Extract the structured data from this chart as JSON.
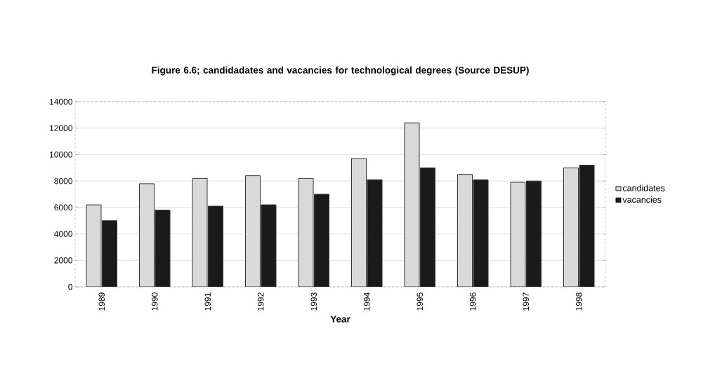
{
  "chart_data": {
    "type": "bar",
    "title": "Figure 6.6; candidadates and vacancies for technological degrees (Source DESUP)",
    "xlabel": "Year",
    "categories": [
      "1989",
      "1990",
      "1991",
      "1992",
      "1993",
      "1994",
      "1995",
      "1996",
      "1997",
      "1998"
    ],
    "series": [
      {
        "name": "candidates",
        "color": "#d9d9d9",
        "values": [
          6200,
          7800,
          8200,
          8400,
          8200,
          9700,
          12400,
          8500,
          7900,
          9000
        ]
      },
      {
        "name": "vacancies",
        "color": "#1a1a1a",
        "values": [
          5000,
          5800,
          6100,
          6200,
          7000,
          8100,
          9000,
          8100,
          8000,
          9200
        ]
      }
    ],
    "ylim": [
      0,
      14000
    ],
    "yticks": [
      0,
      2000,
      4000,
      6000,
      8000,
      10000,
      12000,
      14000
    ],
    "grid": "y",
    "legend": "right"
  }
}
